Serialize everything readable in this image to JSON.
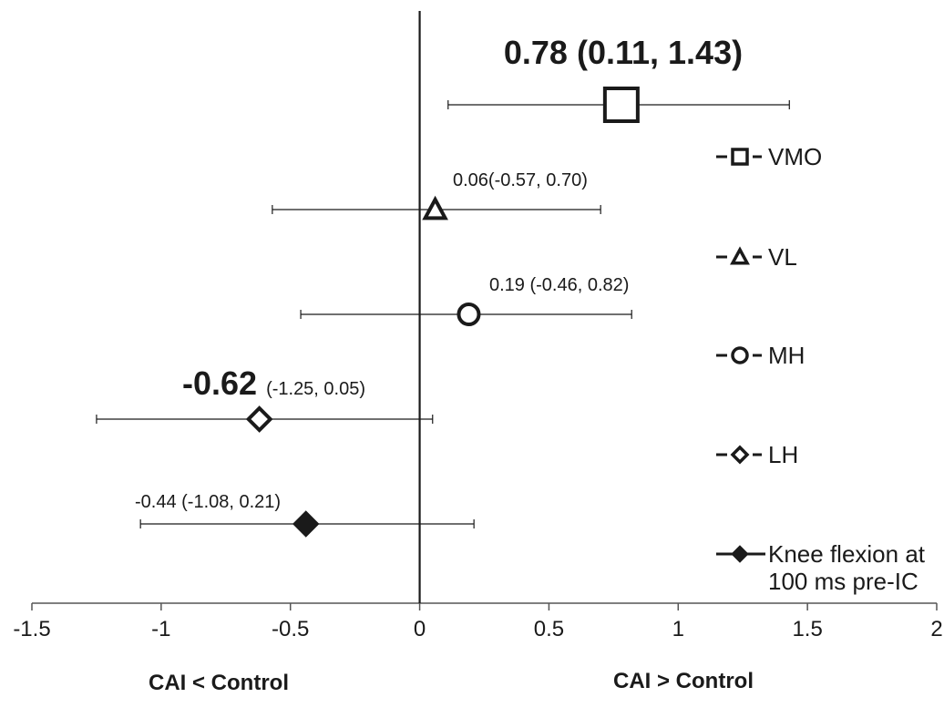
{
  "chart_data": {
    "type": "scatter",
    "subtype": "forest-plot",
    "title": "",
    "xlabel_left": "CAI < Control",
    "xlabel_right": "CAI > Control",
    "xlim": [
      -1.5,
      2
    ],
    "xticks": [
      -1.5,
      -1,
      -0.5,
      0,
      0.5,
      1,
      1.5,
      2
    ],
    "xtick_labels": [
      "-1.5",
      "-1",
      "-0.5",
      "0",
      "0.5",
      "1",
      "1.5",
      "2"
    ],
    "grid": false,
    "legend_position": "right",
    "series": [
      {
        "name": "VMO",
        "marker": "square-open",
        "estimate": 0.78,
        "ci_low": 0.11,
        "ci_high": 1.43,
        "label_main": "0.78 (0.11, 1.43)",
        "label_ci": "",
        "emphasis": true
      },
      {
        "name": "VL",
        "marker": "triangle-open",
        "estimate": 0.06,
        "ci_low": -0.57,
        "ci_high": 0.7,
        "label_main": "0.06(-0.57, 0.70)",
        "label_ci": "",
        "emphasis": false
      },
      {
        "name": "MH",
        "marker": "circle-open",
        "estimate": 0.19,
        "ci_low": -0.46,
        "ci_high": 0.82,
        "label_main": "0.19 (-0.46, 0.82)",
        "label_ci": "",
        "emphasis": false
      },
      {
        "name": "LH",
        "marker": "diamond-open",
        "estimate": -0.62,
        "ci_low": -1.25,
        "ci_high": 0.05,
        "label_main": "-0.62",
        "label_ci": "(-1.25, 0.05)",
        "emphasis": true
      },
      {
        "name": "Knee flexion at\n100 ms pre-IC",
        "marker": "diamond-filled",
        "estimate": -0.44,
        "ci_low": -1.08,
        "ci_high": 0.21,
        "label_main": "-0.44 (-1.08, 0.21)",
        "label_ci": "",
        "emphasis": false
      }
    ],
    "legend": [
      {
        "lines": [
          "VMO"
        ],
        "marker": "square-open"
      },
      {
        "lines": [
          "VL"
        ],
        "marker": "triangle-open"
      },
      {
        "lines": [
          "MH"
        ],
        "marker": "circle-open"
      },
      {
        "lines": [
          "LH"
        ],
        "marker": "diamond-open"
      },
      {
        "lines": [
          "Knee flexion at",
          "100 ms pre-IC"
        ],
        "marker": "diamond-filled"
      }
    ],
    "colors": {
      "ink": "#1a1a1a",
      "background": "#ffffff"
    }
  }
}
